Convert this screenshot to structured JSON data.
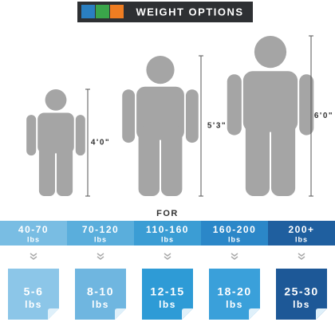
{
  "header": {
    "title": "WEIGHT OPTIONS"
  },
  "figures": [
    {
      "height": "4'0\""
    },
    {
      "height": "5'3\""
    },
    {
      "height": "6'0\""
    }
  ],
  "for_label": "FOR",
  "options": [
    {
      "range": "40-70",
      "range_unit": "lbs",
      "blanket": "5-6",
      "blanket_unit": "lbs"
    },
    {
      "range": "70-120",
      "range_unit": "lbs",
      "blanket": "8-10",
      "blanket_unit": "lbs"
    },
    {
      "range": "110-160",
      "range_unit": "lbs",
      "blanket": "12-15",
      "blanket_unit": "lbs"
    },
    {
      "range": "160-200",
      "range_unit": "lbs",
      "blanket": "18-20",
      "blanket_unit": "lbs"
    },
    {
      "range": "200+",
      "range_unit": "lbs",
      "blanket": "25-30",
      "blanket_unit": "lbs"
    }
  ]
}
